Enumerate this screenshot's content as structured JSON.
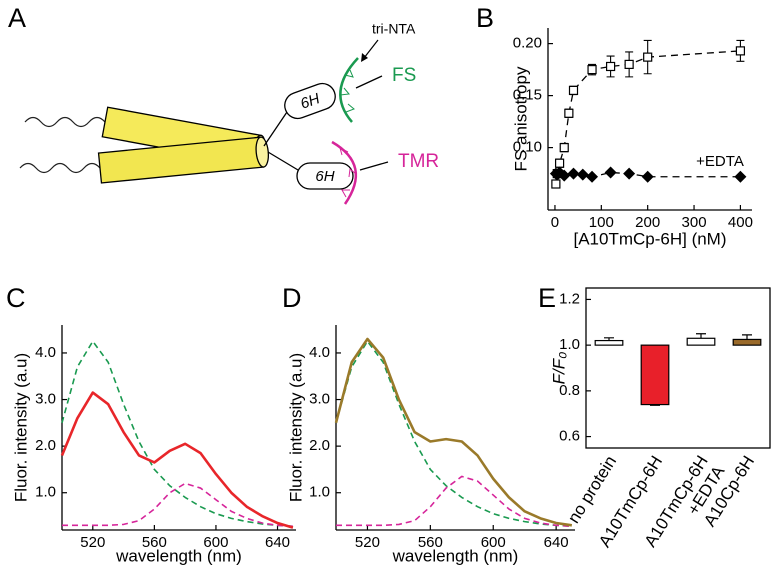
{
  "diagram": {
    "panel": "A",
    "tri_nta": "tri-NTA",
    "fs": "FS",
    "tmr": "TMR",
    "tags": [
      "6H",
      "6H"
    ]
  },
  "chart_data": [
    {
      "type": "scatter",
      "panel": "B",
      "xlabel": "[A10TmCp-6H] (nM)",
      "ylabel": "FS anisotropy",
      "annotation": "+EDTA",
      "xlim": [
        -15,
        425
      ],
      "xticks": [
        0,
        100,
        200,
        300,
        400
      ],
      "ylim": [
        0.04,
        0.215
      ],
      "yticks": [
        {
          "value": 0.2,
          "label": "0.20"
        },
        0.15,
        {
          "value": 0.1,
          "label": "0.10"
        }
      ],
      "series": [
        {
          "marker": "square-open",
          "color": "#000000",
          "line": "dashed",
          "x": [
            2,
            5,
            10,
            20,
            30,
            40,
            80,
            120,
            160,
            200,
            400
          ],
          "values": [
            0.065,
            0.075,
            0.085,
            0.1,
            0.133,
            0.155,
            0.175,
            0.178,
            0.18,
            0.187,
            0.193
          ],
          "errors": [
            0.003,
            0.003,
            0.004,
            0.004,
            0.004,
            0.004,
            0.005,
            0.01,
            0.012,
            0.016,
            0.01
          ]
        },
        {
          "marker": "diamond",
          "color": "#000000",
          "line": "dashed",
          "x": [
            2,
            5,
            10,
            20,
            40,
            60,
            80,
            120,
            160,
            200,
            400
          ],
          "values": [
            0.075,
            0.074,
            0.076,
            0.073,
            0.075,
            0.074,
            0.072,
            0.076,
            0.075,
            0.072,
            0.072
          ]
        }
      ]
    },
    {
      "type": "line",
      "panel": "C",
      "xlabel": "wavelength (nm)",
      "ylabel": "Fluor. intensity (a.u)",
      "xlim": [
        500,
        652
      ],
      "xticks": [
        520,
        560,
        600,
        640
      ],
      "ylim": [
        0.2,
        4.6
      ],
      "yticks": [
        {
          "value": 4,
          "label": "4.0"
        },
        {
          "value": 3,
          "label": "3.0"
        },
        {
          "value": 2,
          "label": "2.0"
        },
        {
          "value": 1,
          "label": "1.0"
        }
      ],
      "x": [
        500,
        510,
        520,
        530,
        540,
        550,
        560,
        570,
        580,
        590,
        600,
        610,
        620,
        630,
        640,
        650
      ],
      "series": [
        {
          "color": "#1a9a50",
          "dash": true,
          "values": [
            2.5,
            3.7,
            4.25,
            3.8,
            2.9,
            2.1,
            1.5,
            1.15,
            0.9,
            0.7,
            0.55,
            0.45,
            0.38,
            0.33,
            0.3,
            0.28
          ]
        },
        {
          "color": "#d6259a",
          "dash": true,
          "values": [
            0.3,
            0.3,
            0.3,
            0.3,
            0.32,
            0.4,
            0.65,
            1.0,
            1.2,
            1.1,
            0.85,
            0.6,
            0.45,
            0.35,
            0.3,
            0.28
          ]
        },
        {
          "color": "#e8262a",
          "dash": false,
          "values": [
            1.8,
            2.6,
            3.15,
            2.9,
            2.3,
            1.8,
            1.65,
            1.9,
            2.05,
            1.85,
            1.4,
            1.0,
            0.7,
            0.5,
            0.35,
            0.25
          ]
        }
      ]
    },
    {
      "type": "line",
      "panel": "D",
      "xlabel": "wavelength (nm)",
      "ylabel": "Fluor. intensity (a.u)",
      "xlim": [
        500,
        652
      ],
      "xticks": [
        520,
        560,
        600,
        640
      ],
      "ylim": [
        0.2,
        4.6
      ],
      "yticks": [
        {
          "value": 4,
          "label": "4.0"
        },
        {
          "value": 3,
          "label": "3.0"
        },
        {
          "value": 2,
          "label": "2.0"
        },
        {
          "value": 1,
          "label": "1.0"
        }
      ],
      "x": [
        500,
        510,
        520,
        530,
        540,
        550,
        560,
        570,
        580,
        590,
        600,
        610,
        620,
        630,
        640,
        650
      ],
      "series": [
        {
          "color": "#1a9a50",
          "dash": true,
          "values": [
            2.5,
            3.7,
            4.25,
            3.8,
            2.9,
            2.1,
            1.5,
            1.15,
            0.9,
            0.7,
            0.55,
            0.45,
            0.38,
            0.33,
            0.3,
            0.28
          ]
        },
        {
          "color": "#d6259a",
          "dash": true,
          "values": [
            0.3,
            0.3,
            0.3,
            0.3,
            0.32,
            0.4,
            0.7,
            1.1,
            1.35,
            1.25,
            0.95,
            0.65,
            0.45,
            0.35,
            0.3,
            0.28
          ]
        },
        {
          "color": "#9a7a2a",
          "dash": false,
          "values": [
            2.5,
            3.8,
            4.3,
            3.9,
            3.0,
            2.3,
            2.1,
            2.15,
            2.1,
            1.8,
            1.3,
            0.9,
            0.6,
            0.45,
            0.35,
            0.3
          ]
        }
      ]
    },
    {
      "type": "bar",
      "panel": "E",
      "ylabel": "F/F₀",
      "bar_base": 1.0,
      "ylim": [
        0.55,
        1.25
      ],
      "yticks": [
        1.2,
        {
          "value": 1,
          "label": "1.0"
        },
        0.8,
        0.6
      ],
      "categories": [
        "no protein",
        "A10TmCp-6H",
        "A10TmCp-6H\n+EDTA",
        "A10Cp-6H"
      ],
      "values": [
        1.02,
        0.74,
        1.03,
        1.025
      ],
      "errors": [
        0.012,
        0.003,
        0.02,
        0.02
      ],
      "colors": [
        "#ffffff",
        "#e8202a",
        "#ffffff",
        "#9a6a2a"
      ]
    }
  ]
}
